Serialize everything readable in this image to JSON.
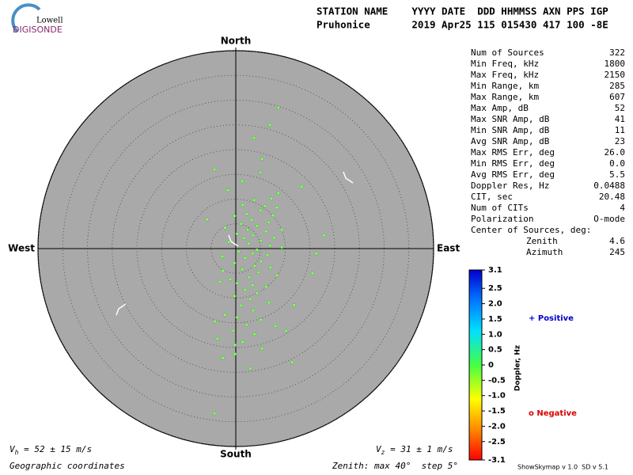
{
  "logo": {
    "top": "Lowell",
    "bottom": "DIGISONDE"
  },
  "header": {
    "labels": "STATION NAME    YYYY DATE  DDD HHMMSS AXN PPS IGP",
    "values": "Pruhonice       2019 Apr25 115 015430 417 100 -8E"
  },
  "stats": [
    {
      "label": "Num of Sources",
      "value": "322"
    },
    {
      "label": "Min Freq, kHz",
      "value": "1800"
    },
    {
      "label": "Max Freq, kHz",
      "value": "2150"
    },
    {
      "label": "Min Range, km",
      "value": "285"
    },
    {
      "label": "Max Range, km",
      "value": "607"
    },
    {
      "label": "Max Amp, dB",
      "value": "52"
    },
    {
      "label": "Max SNR Amp, dB",
      "value": "41"
    },
    {
      "label": "Min SNR Amp, dB",
      "value": "11"
    },
    {
      "label": "Avg SNR Amp, dB",
      "value": "23"
    },
    {
      "label": "Max RMS Err, deg",
      "value": "26.0"
    },
    {
      "label": "Min RMS Err, deg",
      "value": "0.0"
    },
    {
      "label": "Avg RMS Err, deg",
      "value": "5.5"
    },
    {
      "label": "Doppler Res, Hz",
      "value": "0.0488"
    },
    {
      "label": "CIT, sec",
      "value": "20.48"
    },
    {
      "label": "Num of CITs",
      "value": "4"
    },
    {
      "label": "Polarization",
      "value": "O-mode"
    }
  ],
  "center": {
    "title": "Center of Sources, deg:",
    "rows": [
      {
        "label": "Zenith",
        "value": "4.6"
      },
      {
        "label": "Azimuth",
        "value": "245"
      }
    ]
  },
  "footer": {
    "vh": {
      "symbol": "V",
      "subscript": "h",
      "text": " = 52 ± 15 m/s"
    },
    "vz": {
      "symbol": "V",
      "subscript": "z",
      "text": " = 31 ± 1 m/s"
    },
    "coords": "Geographic coordinates",
    "zenith": "Zenith: max 40°  step 5°",
    "version": "ShowSkymap v 1.0  SD v 5.1"
  },
  "chart_data": {
    "type": "skymap",
    "directions": {
      "north": "North",
      "south": "South",
      "east": "East",
      "west": "West"
    },
    "rlim": [
      0,
      40
    ],
    "rticks": [
      5,
      10,
      15,
      20,
      25,
      30,
      35,
      40
    ],
    "x": [
      8.6,
      6.9,
      3.7,
      5.3,
      -4.3,
      5.0,
      1.3,
      13.3,
      -1.6,
      8.6,
      7.2,
      3.7,
      5.9,
      1.4,
      8.3,
      5.0,
      2.2,
      -5.8,
      -0.3,
      7.5,
      3.2,
      6.7,
      1.1,
      4.3,
      -2.2,
      2.4,
      6.1,
      9.3,
      0.3,
      3.5,
      7.8,
      1.6,
      5.1,
      17.9,
      -1.4,
      2.6,
      6.9,
      9.3,
      4.3,
      0.6,
      3.4,
      6.4,
      -2.7,
      1.9,
      5.1,
      16.3,
      -0.3,
      3.8,
      7.0,
      1.3,
      -2.6,
      4.6,
      8.3,
      2.7,
      15.5,
      -1.1,
      0.3,
      3.4,
      6.1,
      -3.2,
      1.9,
      4.3,
      -0.3,
      2.9,
      6.7,
      1.1,
      11.8,
      3.5,
      -2.2,
      0.3,
      5.1,
      -4.2,
      2.2,
      8.0,
      -0.5,
      3.8,
      10.2,
      -3.7,
      1.4,
      -0.2,
      5.3,
      -2.6,
      -0.2,
      2.9,
      11.4,
      -4.3
    ],
    "y": [
      28.5,
      25.0,
      22.4,
      18.1,
      16.0,
      15.4,
      13.6,
      12.5,
      11.8,
      11.2,
      10.1,
      9.8,
      8.6,
      8.8,
      8.3,
      7.7,
      7.0,
      5.9,
      6.6,
      6.7,
      5.8,
      5.3,
      5.0,
      4.6,
      4.2,
      3.8,
      3.5,
      3.8,
      3.0,
      2.7,
      2.2,
      2.1,
      1.6,
      2.7,
      1.3,
      1.0,
      0.6,
      0.3,
      -0.3,
      -0.6,
      -1.0,
      -1.3,
      -1.6,
      -1.9,
      -2.6,
      -1.0,
      -2.9,
      -3.5,
      -3.8,
      -4.2,
      -4.5,
      -4.8,
      -5.4,
      -5.8,
      -5.0,
      -6.2,
      -7.0,
      -7.4,
      -7.7,
      -6.7,
      -8.3,
      -9.0,
      -9.6,
      -10.2,
      -10.9,
      -11.5,
      -11.4,
      -12.5,
      -13.4,
      -13.9,
      -14.4,
      -14.7,
      -15.4,
      -15.7,
      -16.6,
      -17.3,
      -16.6,
      -18.2,
      -18.9,
      -19.5,
      -20.2,
      -22.1,
      -21.3,
      -24.2,
      -23.0,
      -33.3
    ],
    "color": "#99ff66",
    "colorbar": {
      "label": "Doppler, Hz",
      "clim": [
        -3.1,
        3.1
      ],
      "ticks": [
        3.1,
        2.5,
        {
          "value": 2,
          "label": "2.0"
        },
        1.5,
        {
          "value": 1,
          "label": "1.0"
        },
        0.5,
        0,
        -0.5,
        {
          "value": -1,
          "label": "-1.0"
        },
        -1.5,
        {
          "value": -2,
          "label": "-2.0"
        },
        -2.5,
        -3.1
      ]
    },
    "legend": {
      "positive": "+ Positive",
      "negative": "o Negative"
    }
  }
}
